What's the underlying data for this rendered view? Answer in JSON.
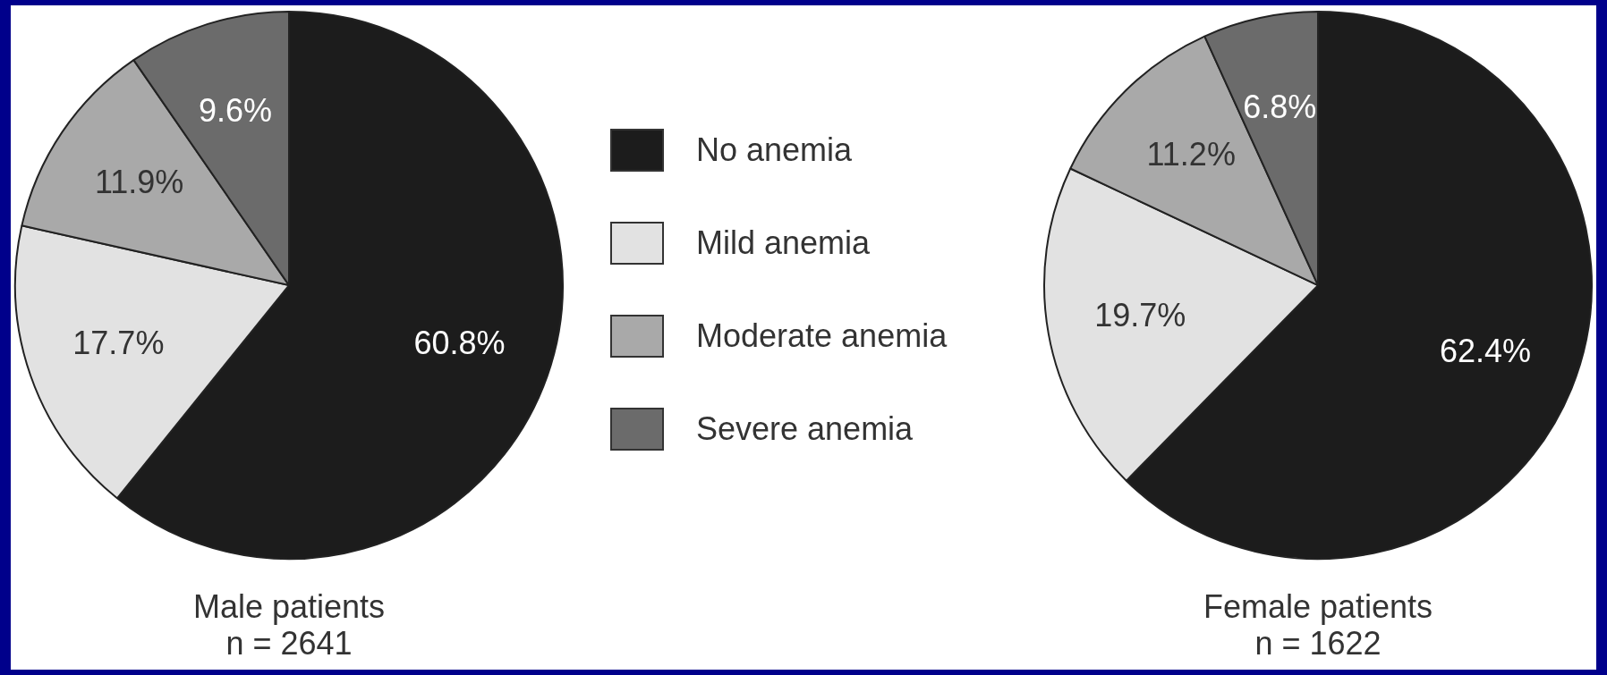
{
  "chart_data": [
    {
      "type": "pie",
      "title": "Male patients",
      "subtitle": "n = 2641",
      "categories": [
        "No anemia",
        "Mild anemia",
        "Moderate anemia",
        "Severe anemia"
      ],
      "values": [
        60.8,
        17.7,
        11.9,
        9.6
      ],
      "colors": [
        "#1c1c1c",
        "#e2e2e2",
        "#a9a9a9",
        "#6b6b6b"
      ],
      "value_labels": [
        "60.8%",
        "17.7%",
        "11.9%",
        "9.6%"
      ],
      "legend": "right"
    },
    {
      "type": "pie",
      "title": "Female patients",
      "subtitle": "n = 1622",
      "categories": [
        null,
        null,
        null,
        null
      ],
      "values": [
        62.4,
        19.7,
        11.2,
        6.8
      ],
      "colors": [
        "#1c1c1c",
        "#e2e2e2",
        "#a9a9a9",
        "#6b6b6b"
      ],
      "value_labels": [
        "62.4%",
        "19.7%",
        "11.2%",
        "6.8%"
      ]
    }
  ]
}
